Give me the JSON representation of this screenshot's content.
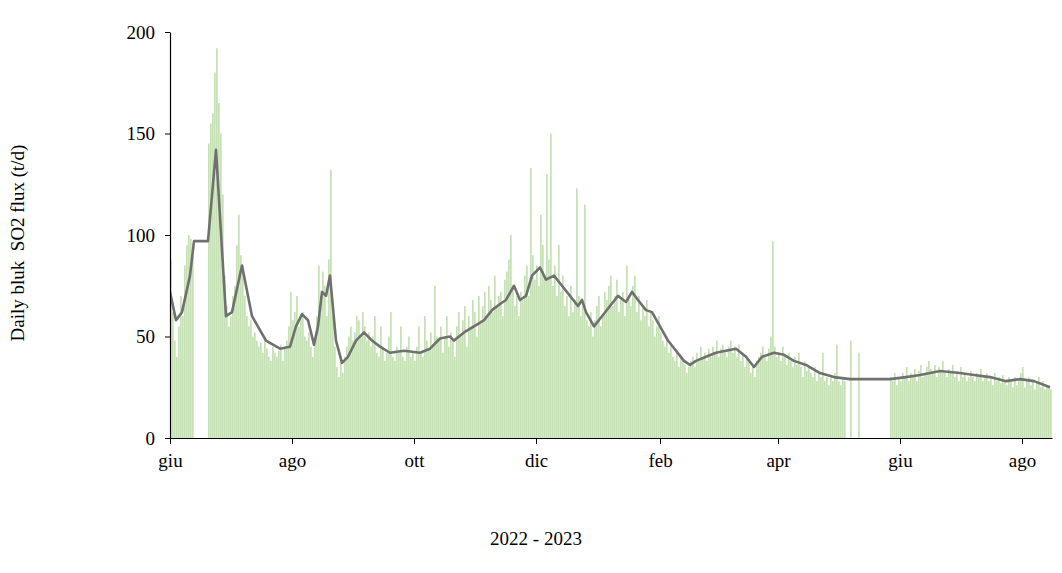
{
  "chart_data": {
    "type": "bar",
    "x_label": "2022 - 2023",
    "y_label": "Daily bluk  SO2 flux (t/d)",
    "xlim": [
      0,
      441
    ],
    "xticks": [
      {
        "value": 0,
        "label": "giu"
      },
      {
        "value": 61,
        "label": "ago"
      },
      {
        "value": 122,
        "label": "ott"
      },
      {
        "value": 183,
        "label": "dic"
      },
      {
        "value": 245,
        "label": "feb"
      },
      {
        "value": 304,
        "label": "apr"
      },
      {
        "value": 365,
        "label": "giu"
      },
      {
        "value": 426,
        "label": "ago"
      }
    ],
    "ylim": [
      0,
      200
    ],
    "yticks": [
      0,
      50,
      100,
      150,
      200
    ],
    "grid": false,
    "series": [
      {
        "type": "bar",
        "color": "#c5e0b4",
        "x": [
          0,
          1,
          2,
          3,
          4,
          5,
          6,
          7,
          8,
          9,
          10,
          11,
          12,
          13,
          14,
          15,
          16,
          17,
          18,
          19,
          20,
          21,
          22,
          23,
          24,
          25,
          26,
          27,
          28,
          29,
          30,
          31,
          32,
          33,
          34,
          35,
          36,
          37,
          38,
          39,
          40,
          41,
          42,
          43,
          44,
          45,
          46,
          47,
          48,
          49,
          50,
          51,
          52,
          53,
          54,
          55,
          56,
          57,
          58,
          59,
          60,
          61,
          62,
          63,
          64,
          65,
          66,
          67,
          68,
          69,
          70,
          71,
          72,
          73,
          74,
          75,
          76,
          77,
          78,
          79,
          80,
          81,
          82,
          83,
          84,
          85,
          86,
          87,
          88,
          89,
          90,
          91,
          92,
          93,
          94,
          95,
          96,
          97,
          98,
          99,
          100,
          101,
          102,
          103,
          104,
          105,
          106,
          107,
          108,
          109,
          110,
          111,
          112,
          113,
          114,
          115,
          116,
          117,
          118,
          119,
          120,
          121,
          122,
          123,
          124,
          125,
          126,
          127,
          128,
          129,
          130,
          131,
          132,
          133,
          134,
          135,
          136,
          137,
          138,
          139,
          140,
          141,
          142,
          143,
          144,
          145,
          146,
          147,
          148,
          149,
          150,
          151,
          152,
          153,
          154,
          155,
          156,
          157,
          158,
          159,
          160,
          161,
          162,
          163,
          164,
          165,
          166,
          167,
          168,
          169,
          170,
          171,
          172,
          173,
          174,
          175,
          176,
          177,
          178,
          179,
          180,
          181,
          182,
          183,
          184,
          185,
          186,
          187,
          188,
          189,
          190,
          191,
          192,
          193,
          194,
          195,
          196,
          197,
          198,
          199,
          200,
          201,
          202,
          203,
          204,
          205,
          206,
          207,
          208,
          209,
          210,
          211,
          212,
          213,
          214,
          215,
          216,
          217,
          218,
          219,
          220,
          221,
          222,
          223,
          224,
          225,
          226,
          227,
          228,
          229,
          230,
          231,
          232,
          233,
          234,
          235,
          236,
          237,
          238,
          239,
          240,
          241,
          242,
          243,
          244,
          245,
          246,
          247,
          248,
          249,
          250,
          251,
          252,
          253,
          254,
          255,
          256,
          257,
          258,
          259,
          260,
          261,
          262,
          263,
          264,
          265,
          266,
          267,
          268,
          269,
          270,
          271,
          272,
          273,
          274,
          275,
          276,
          277,
          278,
          279,
          280,
          281,
          282,
          283,
          284,
          285,
          286,
          287,
          288,
          289,
          290,
          291,
          292,
          293,
          294,
          295,
          296,
          297,
          298,
          299,
          300,
          301,
          302,
          303,
          304,
          305,
          306,
          307,
          308,
          309,
          310,
          311,
          312,
          313,
          314,
          315,
          316,
          317,
          318,
          319,
          320,
          321,
          322,
          323,
          324,
          325,
          326,
          327,
          328,
          329,
          330,
          331,
          332,
          333,
          334,
          335,
          336,
          337,
          338,
          339,
          340,
          341,
          342,
          343,
          344,
          345,
          346,
          347,
          348,
          349,
          350,
          351,
          352,
          353,
          354,
          355,
          356,
          357,
          358,
          359,
          360,
          361,
          362,
          363,
          364,
          365,
          366,
          367,
          368,
          369,
          370,
          371,
          372,
          373,
          374,
          375,
          376,
          377,
          378,
          379,
          380,
          381,
          382,
          383,
          384,
          385,
          386,
          387,
          388,
          389,
          390,
          391,
          392,
          393,
          394,
          395,
          396,
          397,
          398,
          399,
          400,
          401,
          402,
          403,
          404,
          405,
          406,
          407,
          408,
          409,
          410,
          411,
          412,
          413,
          414,
          415,
          416,
          417,
          418,
          419,
          420,
          421,
          422,
          423,
          424,
          425,
          426,
          427,
          428,
          429,
          430,
          431,
          432,
          433,
          434,
          435,
          436,
          437,
          438,
          439,
          440
        ],
        "values": [
          88,
          62,
          48,
          40,
          55,
          70,
          60,
          85,
          95,
          100,
          98,
          90,
          null,
          null,
          null,
          null,
          null,
          null,
          null,
          145,
          155,
          160,
          180,
          192,
          165,
          150,
          120,
          80,
          65,
          55,
          60,
          70,
          75,
          95,
          110,
          90,
          85,
          70,
          60,
          55,
          58,
          50,
          52,
          48,
          45,
          47,
          42,
          50,
          44,
          40,
          38,
          45,
          42,
          40,
          43,
          46,
          38,
          45,
          48,
          55,
          72,
          58,
          62,
          70,
          55,
          60,
          62,
          50,
          48,
          52,
          45,
          40,
          48,
          60,
          85,
          70,
          82,
          75,
          60,
          88,
          132,
          60,
          45,
          35,
          30,
          38,
          32,
          40,
          45,
          50,
          55,
          48,
          52,
          60,
          58,
          50,
          62,
          55,
          48,
          52,
          45,
          50,
          60,
          42,
          40,
          55,
          45,
          38,
          42,
          50,
          62,
          40,
          38,
          45,
          42,
          55,
          40,
          38,
          45,
          50,
          40,
          42,
          38,
          45,
          55,
          42,
          40,
          60,
          48,
          44,
          52,
          46,
          75,
          50,
          48,
          55,
          42,
          50,
          60,
          45,
          52,
          48,
          40,
          55,
          62,
          50,
          58,
          65,
          45,
          60,
          55,
          68,
          62,
          50,
          70,
          58,
          65,
          72,
          60,
          75,
          68,
          62,
          80,
          65,
          70,
          72,
          60,
          78,
          82,
          88,
          100,
          75,
          65,
          70,
          60,
          72,
          68,
          80,
          85,
          70,
          133,
          90,
          78,
          85,
          75,
          110,
          95,
          80,
          130,
          88,
          150,
          75,
          85,
          70,
          95,
          72,
          80,
          65,
          70,
          60,
          75,
          62,
          68,
          123,
          70,
          60,
          65,
          115,
          58,
          55,
          62,
          50,
          58,
          65,
          70,
          55,
          60,
          72,
          68,
          75,
          80,
          65,
          70,
          78,
          62,
          68,
          72,
          60,
          85,
          70,
          65,
          75,
          80,
          62,
          70,
          58,
          65,
          60,
          68,
          55,
          62,
          58,
          50,
          55,
          60,
          52,
          48,
          45,
          50,
          42,
          45,
          40,
          38,
          42,
          35,
          40,
          38,
          36,
          32,
          35,
          38,
          40,
          35,
          42,
          38,
          45,
          40,
          42,
          38,
          44,
          40,
          45,
          42,
          48,
          40,
          44,
          46,
          42,
          40,
          45,
          48,
          42,
          45,
          40,
          46,
          38,
          42,
          35,
          40,
          38,
          32,
          35,
          30,
          38,
          40,
          42,
          45,
          40,
          38,
          44,
          50,
          97,
          45,
          40,
          42,
          38,
          45,
          40,
          36,
          42,
          38,
          35,
          40,
          36,
          42,
          35,
          30,
          38,
          33,
          35,
          32,
          30,
          35,
          28,
          32,
          30,
          42,
          28,
          30,
          26,
          30,
          28,
          32,
          46,
          28,
          26,
          30,
          28,
          null,
          null,
          48,
          null,
          null,
          null,
          42,
          null,
          null,
          null,
          null,
          null,
          null,
          null,
          null,
          null,
          null,
          null,
          null,
          null,
          null,
          null,
          30,
          28,
          32,
          26,
          30,
          28,
          32,
          30,
          35,
          28,
          32,
          30,
          34,
          28,
          33,
          36,
          30,
          32,
          35,
          38,
          34,
          32,
          36,
          30,
          35,
          33,
          38,
          32,
          30,
          34,
          32,
          36,
          30,
          33,
          28,
          35,
          30,
          32,
          28,
          30,
          33,
          30,
          28,
          32,
          30,
          34,
          28,
          30,
          32,
          28,
          30,
          26,
          32,
          28,
          30,
          27,
          31,
          28,
          26,
          30,
          28,
          25,
          30,
          26,
          28,
          32,
          35,
          25,
          28,
          30,
          26,
          28,
          24,
          27,
          30,
          25,
          28,
          24,
          26,
          25,
          24
        ]
      },
      {
        "type": "line",
        "color": "#707070",
        "x": [
          0,
          3,
          6,
          10,
          12,
          19,
          23,
          28,
          31,
          36,
          41,
          48,
          55,
          60,
          63,
          66,
          69,
          72,
          74,
          76,
          78,
          80,
          83,
          86,
          89,
          93,
          97,
          101,
          105,
          110,
          117,
          125,
          130,
          135,
          140,
          142,
          147,
          152,
          157,
          161,
          165,
          168,
          172,
          175,
          178,
          181,
          185,
          188,
          192,
          196,
          200,
          204,
          206,
          208,
          212,
          216,
          220,
          224,
          228,
          231,
          234,
          238,
          241,
          245,
          249,
          253,
          257,
          260,
          263,
          268,
          273,
          278,
          283,
          288,
          292,
          296,
          302,
          307,
          312,
          318,
          325,
          332,
          340,
          350,
          360,
          368,
          375,
          385,
          395,
          402,
          410,
          418,
          425,
          432,
          440
        ],
        "values": [
          72,
          58,
          62,
          80,
          97,
          97,
          142,
          60,
          62,
          85,
          60,
          48,
          44,
          45,
          55,
          61,
          58,
          46,
          55,
          72,
          70,
          80,
          48,
          37,
          40,
          48,
          52,
          48,
          45,
          42,
          43,
          42,
          44,
          49,
          50,
          48,
          52,
          55,
          58,
          63,
          66,
          68,
          75,
          68,
          70,
          80,
          84,
          78,
          80,
          75,
          70,
          65,
          68,
          62,
          55,
          60,
          65,
          70,
          67,
          72,
          68,
          63,
          62,
          55,
          48,
          43,
          38,
          36,
          38,
          40,
          42,
          43,
          44,
          40,
          35,
          40,
          42,
          41,
          38,
          36,
          32,
          30,
          29,
          29,
          29,
          30,
          31,
          33,
          32,
          31,
          30,
          28,
          29,
          28,
          25
        ]
      }
    ]
  }
}
